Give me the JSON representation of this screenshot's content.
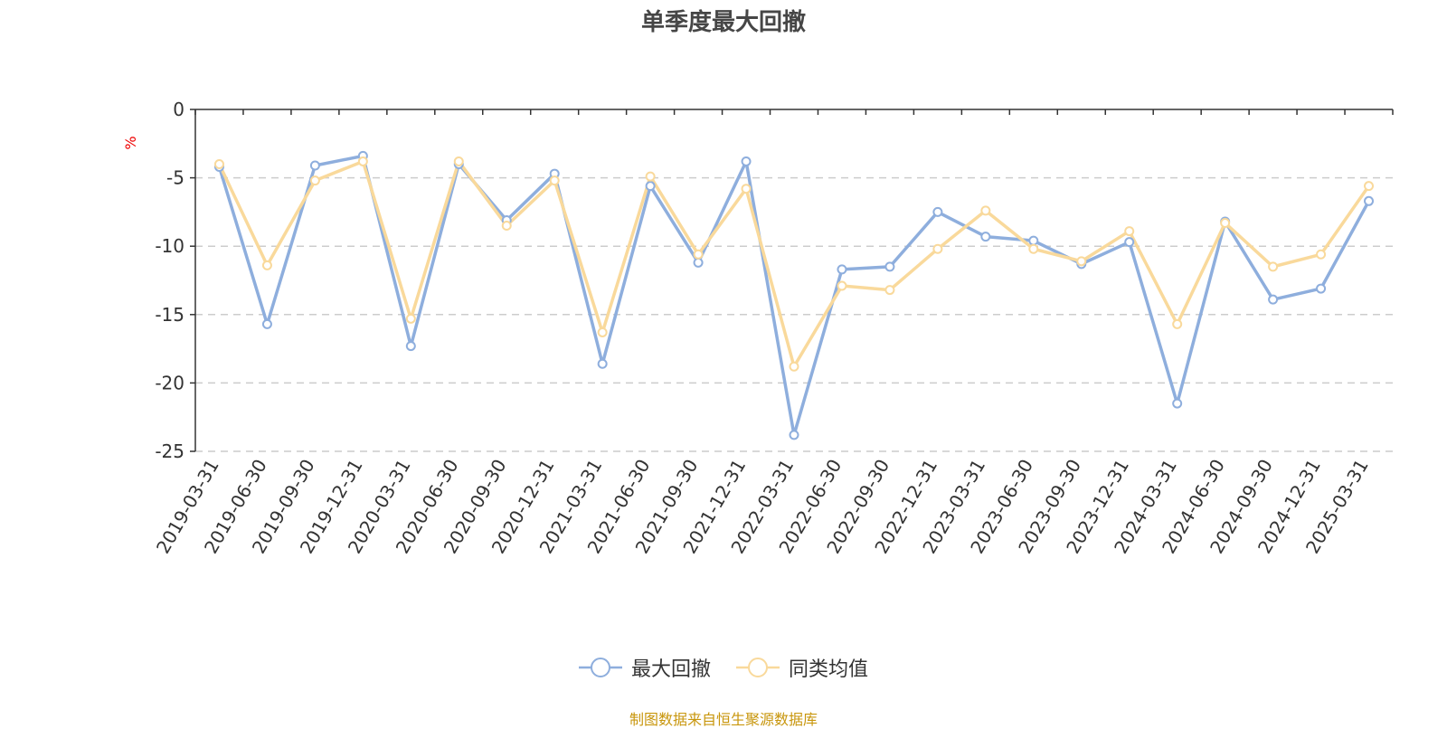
{
  "chart_data": {
    "type": "line",
    "title": "单季度最大回撤",
    "ylabel": "%",
    "ylim": [
      -25,
      0
    ],
    "yticks": [
      0,
      -5,
      -10,
      -15,
      -20,
      -25
    ],
    "grid": true,
    "legend_position": "bottom",
    "categories": [
      "2019-03-31",
      "2019-06-30",
      "2019-09-30",
      "2019-12-31",
      "2020-03-31",
      "2020-06-30",
      "2020-09-30",
      "2020-12-31",
      "2021-03-31",
      "2021-06-30",
      "2021-09-30",
      "2021-12-31",
      "2022-03-31",
      "2022-06-30",
      "2022-09-30",
      "2022-12-31",
      "2023-03-31",
      "2023-06-30",
      "2023-09-30",
      "2023-12-31",
      "2024-03-31",
      "2024-06-30",
      "2024-09-30",
      "2024-12-31",
      "2025-03-31"
    ],
    "series": [
      {
        "name": "最大回撤",
        "color": "#8eaedd",
        "values": [
          -4.2,
          -15.7,
          -4.1,
          -3.4,
          -17.3,
          -4.0,
          -8.1,
          -4.7,
          -18.6,
          -5.6,
          -11.2,
          -3.8,
          -23.8,
          -11.7,
          -11.5,
          -7.5,
          -9.3,
          -9.6,
          -11.3,
          -9.7,
          -21.5,
          -8.2,
          -13.9,
          -13.1,
          -6.7
        ]
      },
      {
        "name": "同类均值",
        "color": "#f9d99b",
        "values": [
          -4.0,
          -11.4,
          -5.2,
          -3.8,
          -15.3,
          -3.8,
          -8.5,
          -5.2,
          -16.3,
          -4.9,
          -10.6,
          -5.8,
          -18.8,
          -12.9,
          -13.2,
          -10.2,
          -7.4,
          -10.2,
          -11.1,
          -8.9,
          -15.7,
          -8.3,
          -11.5,
          -10.6,
          -5.6
        ]
      }
    ]
  },
  "source_note": "制图数据来自恒生聚源数据库"
}
